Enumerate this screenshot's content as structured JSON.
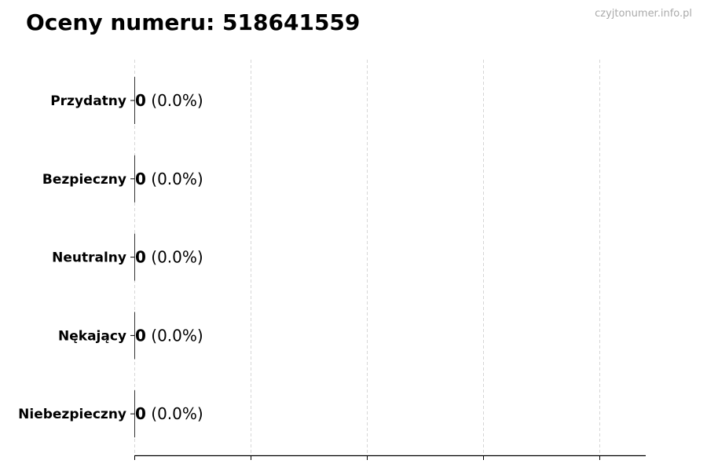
{
  "title": "Oceny numeru: 518641559",
  "watermark": "czyjtonumer.info.pl",
  "chart_data": {
    "type": "bar",
    "orientation": "horizontal",
    "categories": [
      "Przydatny",
      "Bezpieczny",
      "Neutralny",
      "Nękający",
      "Niebezpieczny"
    ],
    "values": [
      0,
      0,
      0,
      0,
      0
    ],
    "data_labels": [
      "0 (0.0%)",
      "0 (0.0%)",
      "0 (0.0%)",
      "0 (0.0%)",
      "0 (0.0%)"
    ],
    "xlim": [
      0,
      4.4
    ],
    "x_tick_count": 5,
    "x_tick_labels_shown": false,
    "grid": "vertical dashed",
    "bar_color": "#333333",
    "grid_color": "#cccccc"
  }
}
